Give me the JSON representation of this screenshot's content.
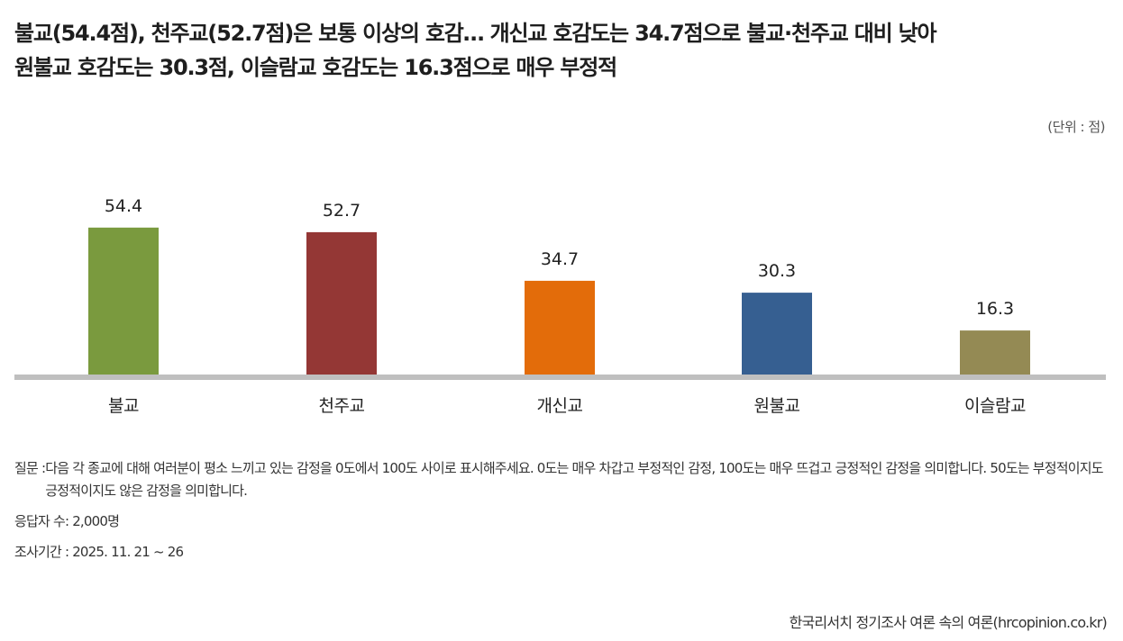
{
  "headline": {
    "line1": "불교(54.4점), 천주교(52.7점)은 보통 이상의 호감… 개신교 호감도는 34.7점으로 불교·천주교 대비 낮아",
    "line2": "원불교 호감도는 30.3점, 이슬람교 호감도는 16.3점으로 매우 부정적"
  },
  "unit": "(단위 : 점)",
  "chart_data": {
    "type": "bar",
    "categories": [
      "불교",
      "천주교",
      "개신교",
      "원불교",
      "이슬람교"
    ],
    "values": [
      54.4,
      52.7,
      34.7,
      30.3,
      16.3
    ],
    "value_labels": [
      "54.4",
      "52.7",
      "34.7",
      "30.3",
      "16.3"
    ],
    "colors": [
      "#7a9a3e",
      "#943735",
      "#e36c0a",
      "#365f91",
      "#948a54"
    ],
    "ylim": [
      0,
      60
    ],
    "grid": false,
    "legend": "none",
    "baseline_color": "#bfbfbf"
  },
  "notes": {
    "question_label": "질문 : ",
    "question_text": "다음 각 종교에 대해 여러분이 평소 느끼고 있는 감정을 0도에서 100도 사이로 표시해주세요. 0도는 매우 차갑고 부정적인 감정, 100도는 매우 뜨겁고 긍정적인 감정을 의미합니다. 50도는 부정적이지도 긍정적이지도 않은 감정을 의미합니다.",
    "respondents": "응답자 수: 2,000명",
    "period": "조사기간 : 2025. 11. 21 ~ 26"
  },
  "source": "한국리서치 정기조사 여론 속의 여론(hrcopinion.co.kr)"
}
